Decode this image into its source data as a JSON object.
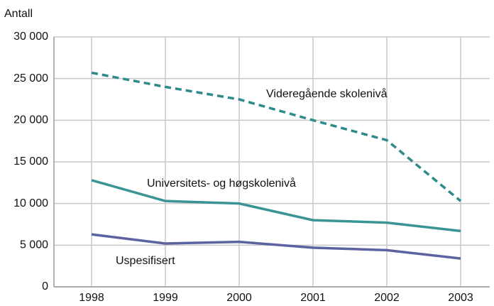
{
  "chart_data": {
    "type": "line",
    "y_label": "Antall",
    "categories": [
      "1998",
      "1999",
      "2000",
      "2001",
      "2002",
      "2003"
    ],
    "series": [
      {
        "name": "Videregående skolenivå",
        "color": "#2f8a8a",
        "style": "dashed",
        "values": [
          25700,
          24000,
          22500,
          20000,
          17600,
          10300
        ]
      },
      {
        "name": "Universitets- og høgskolenivå",
        "color": "#3a9494",
        "style": "solid",
        "values": [
          12800,
          10300,
          10000,
          8000,
          7700,
          6700
        ]
      },
      {
        "name": "Uspesifisert",
        "color": "#5a62a0",
        "style": "solid",
        "values": [
          6300,
          5200,
          5400,
          4700,
          4400,
          3400
        ]
      }
    ],
    "ylim": [
      0,
      30000
    ],
    "yticks": [
      0,
      {
        "value": 5000,
        "label": "5 000"
      },
      {
        "value": 10000,
        "label": "10 000"
      },
      {
        "value": 15000,
        "label": "15 000"
      },
      {
        "value": 20000,
        "label": "20 000"
      },
      {
        "value": 25000,
        "label": "25 000"
      },
      {
        "value": 30000,
        "label": "30 000"
      }
    ],
    "grid": true
  }
}
